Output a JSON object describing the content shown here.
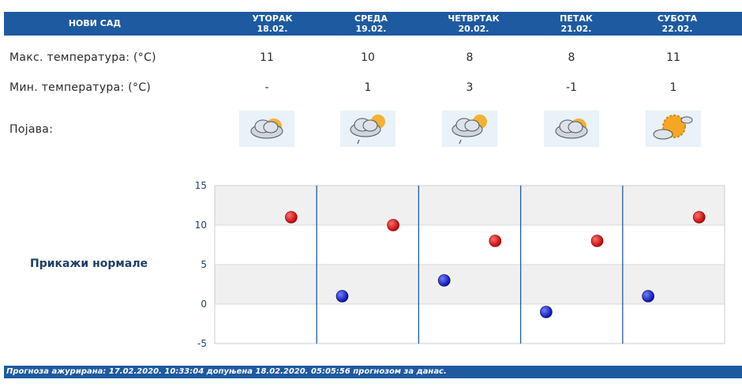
{
  "header": {
    "city": "НОВИ САД",
    "days": [
      {
        "name": "УТОРАК",
        "date": "18.02."
      },
      {
        "name": "СРЕДА",
        "date": "19.02."
      },
      {
        "name": "ЧЕТВРТАК",
        "date": "20.02."
      },
      {
        "name": "ПЕТАК",
        "date": "21.02."
      },
      {
        "name": "СУБОТА",
        "date": "22.02."
      }
    ]
  },
  "rows": {
    "max_label": "Макс. температура: (°C)",
    "min_label": "Мин. температура: (°C)",
    "phenomenon_label": "Појава:",
    "max_values": [
      "11",
      "10",
      "8",
      "8",
      "11"
    ],
    "min_values": [
      "-",
      "1",
      "3",
      "-1",
      "1"
    ],
    "icons": [
      "partly-cloudy-icon",
      "partly-cloudy-rain-icon",
      "partly-cloudy-rain-icon",
      "partly-cloudy-icon",
      "mostly-sunny-icon"
    ]
  },
  "normals_label": "Прикажи нормале",
  "footer": "Прогноза ажурирана:  17.02.2020. 10:33:04 допуњена 18.02.2020. 05:05:56 прогнозом за данас.",
  "colors": {
    "header": "#1e5aa0",
    "max_marker": "#c00000",
    "min_marker": "#0a10b0"
  },
  "chart_data": {
    "type": "scatter",
    "ylim": [
      -5,
      15
    ],
    "yticks": [
      "15",
      "10",
      "5",
      "0",
      "-5"
    ],
    "series": [
      {
        "values": [
          11,
          10,
          8,
          8,
          11
        ],
        "color": "#c00000"
      },
      {
        "values": [
          null,
          1,
          3,
          -1,
          1
        ],
        "color": "#0a10b0"
      }
    ],
    "grid": true
  }
}
